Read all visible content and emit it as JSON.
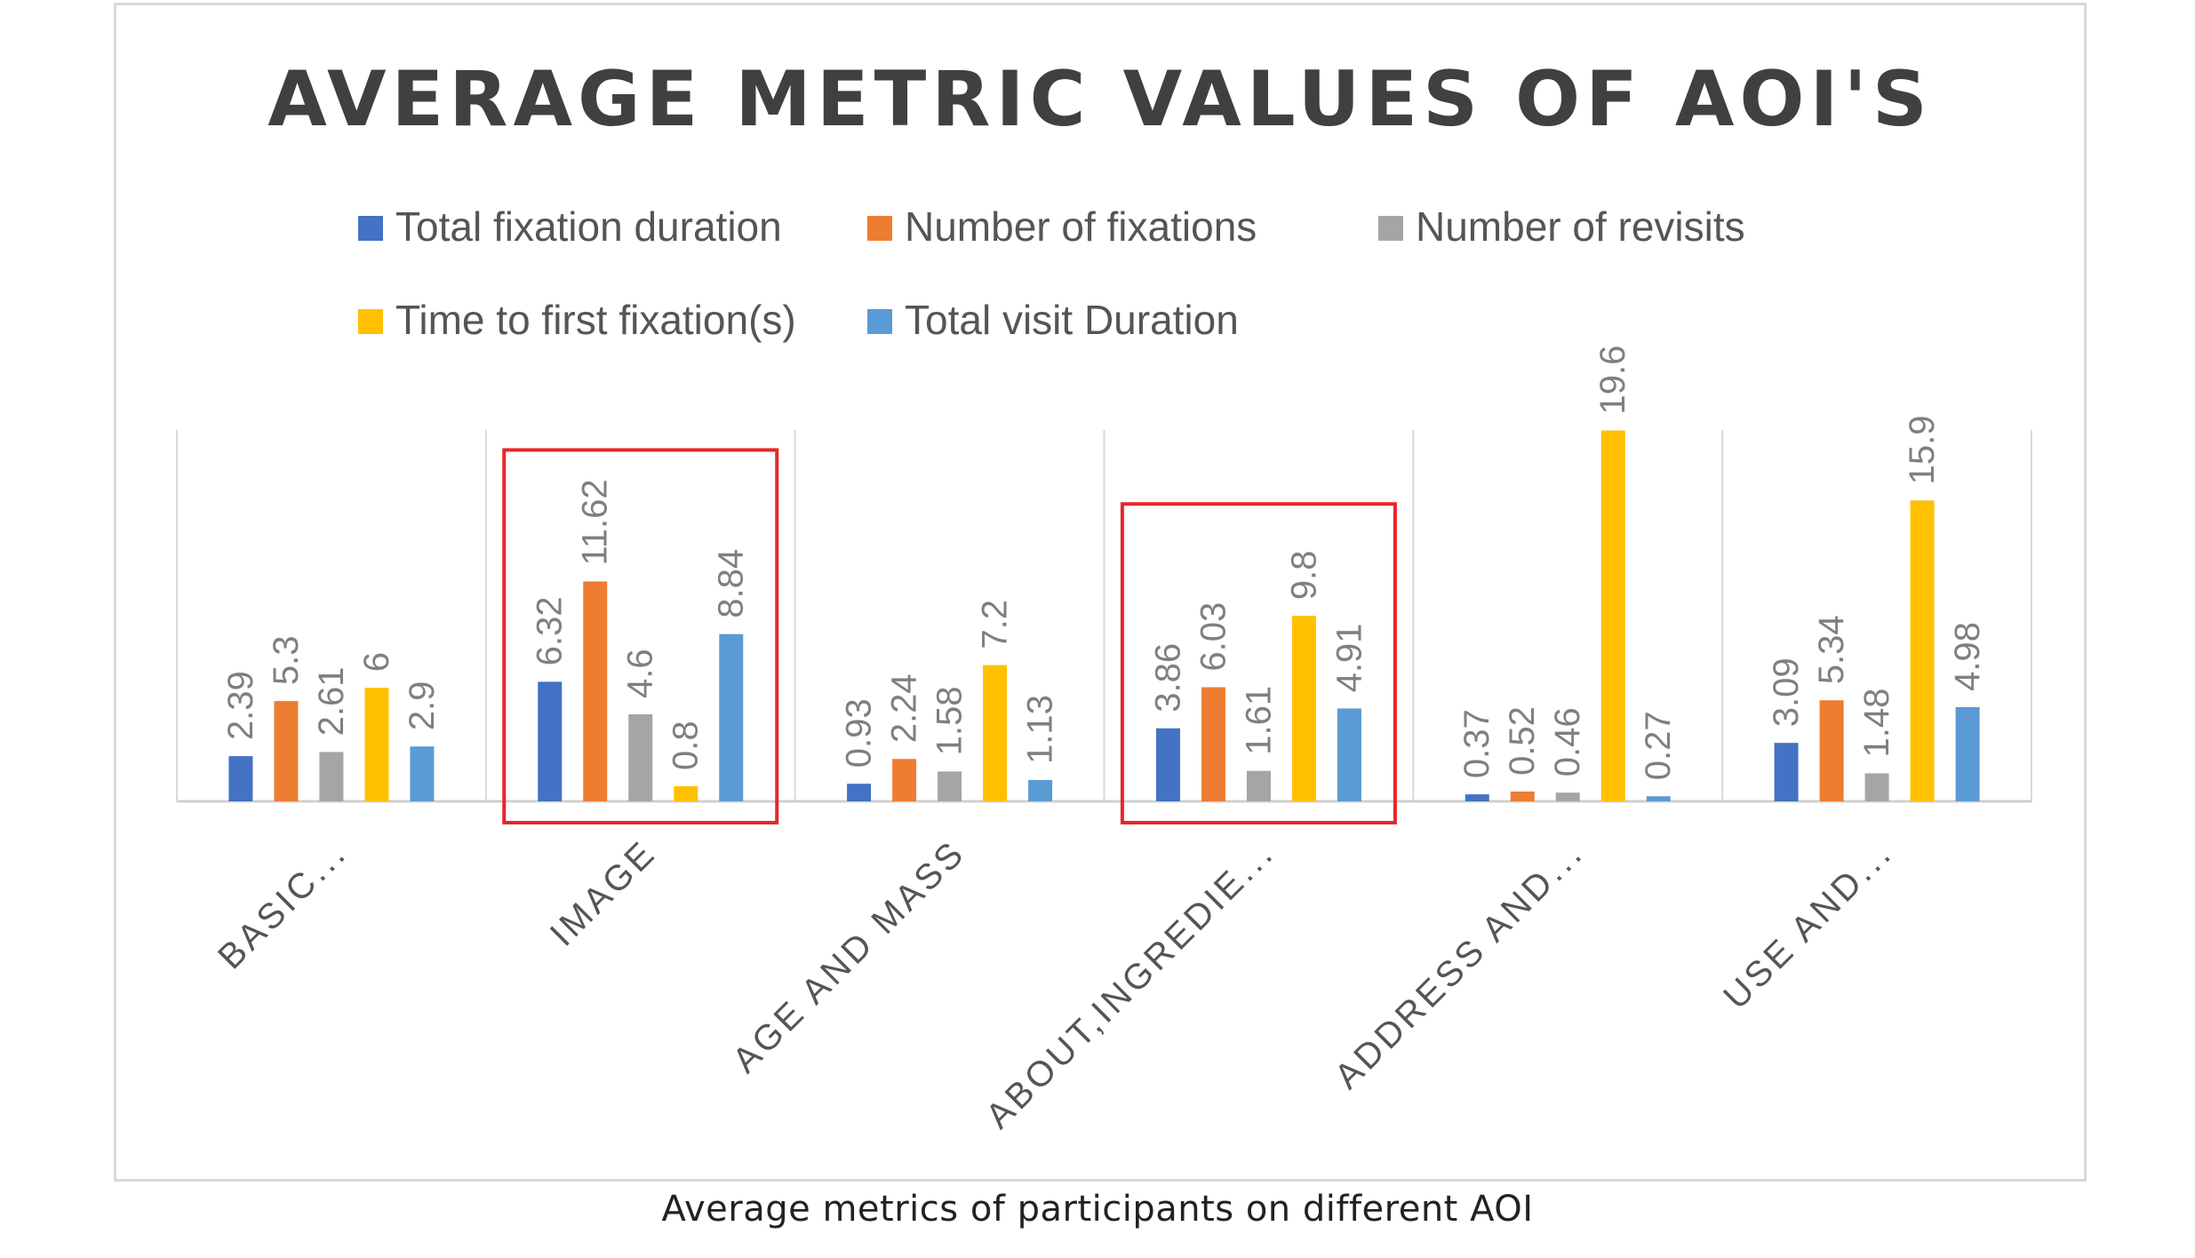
{
  "chart_data": {
    "type": "bar",
    "title": "AVERAGE METRIC VALUES OF AOI'S",
    "xlabel": "",
    "ylabel": "",
    "ylim": [
      0,
      24
    ],
    "grid": "vertical category separators",
    "legend_position": "top",
    "categories": [
      "BASIC...",
      "IMAGE",
      "AGE AND MASS",
      "ABOUT,INGREDIE...",
      "ADDRESS AND...",
      "USE AND..."
    ],
    "series": [
      {
        "name": "Total fixation duration",
        "color": "#4472C4",
        "values": [
          2.39,
          6.32,
          0.93,
          3.86,
          0.37,
          3.09
        ]
      },
      {
        "name": "Number of fixations",
        "color": "#ED7D31",
        "values": [
          5.3,
          11.62,
          2.24,
          6.03,
          0.52,
          5.34
        ]
      },
      {
        "name": "Number of revisits",
        "color": "#A5A5A5",
        "values": [
          2.61,
          4.6,
          1.58,
          1.61,
          0.46,
          1.48
        ]
      },
      {
        "name": "Time to first fixation(s)",
        "color": "#FFC000",
        "values": [
          6,
          0.8,
          7.2,
          9.8,
          19.6,
          15.9
        ]
      },
      {
        "name": "Total visit Duration",
        "color": "#5B9BD5",
        "values": [
          2.9,
          8.84,
          1.13,
          4.91,
          0.27,
          4.98
        ]
      }
    ],
    "data_labels": [
      [
        "2.39",
        "5.3",
        "2.61",
        "6",
        "2.9"
      ],
      [
        "6.32",
        "11.62",
        "4.6",
        "0.8",
        "8.84"
      ],
      [
        "0.93",
        "2.24",
        "1.58",
        "7.2",
        "1.13"
      ],
      [
        "3.86",
        "6.03",
        "1.61",
        "9.8",
        "4.91"
      ],
      [
        "0.37",
        "0.52",
        "0.46",
        "19.6",
        "0.27"
      ],
      [
        "3.09",
        "5.34",
        "1.48",
        "15.9",
        "4.98"
      ]
    ],
    "highlighted_categories": [
      "IMAGE",
      "ABOUT,INGREDIE..."
    ],
    "highlight_color": "#E8262B"
  },
  "caption": "Average metrics of participants on different AOI"
}
